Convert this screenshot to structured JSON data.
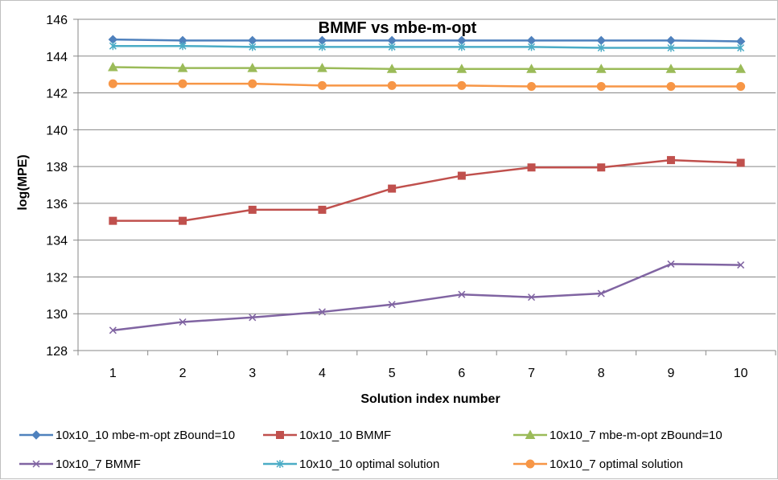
{
  "chart_data": {
    "type": "line",
    "title": "BMMF vs mbe-m-opt",
    "xlabel": "Solution index number",
    "ylabel": "log(MPE)",
    "categories": [
      "1",
      "2",
      "3",
      "4",
      "5",
      "6",
      "7",
      "8",
      "9",
      "10"
    ],
    "ylim": [
      128,
      146
    ],
    "yticks": [
      "128",
      "130",
      "132",
      "134",
      "136",
      "138",
      "140",
      "142",
      "144",
      "146"
    ],
    "grid": "horizontal",
    "legend_position": "bottom",
    "series": [
      {
        "name": "10x10_10 mbe-m-opt zBound=10",
        "color": "#4F81BD",
        "marker": "diamond",
        "values": [
          144.9,
          144.85,
          144.85,
          144.85,
          144.85,
          144.85,
          144.85,
          144.85,
          144.85,
          144.8
        ]
      },
      {
        "name": "10x10_10 BMMF",
        "color": "#C0504D",
        "marker": "square",
        "values": [
          135.05,
          135.05,
          135.65,
          135.65,
          136.8,
          137.5,
          137.95,
          137.95,
          138.35,
          138.2
        ]
      },
      {
        "name": "10x10_7 mbe-m-opt zBound=10",
        "color": "#9BBB59",
        "marker": "triangle",
        "values": [
          143.4,
          143.35,
          143.35,
          143.35,
          143.3,
          143.3,
          143.3,
          143.3,
          143.3,
          143.3
        ]
      },
      {
        "name": "10x10_7 BMMF",
        "color": "#8064A2",
        "marker": "x",
        "values": [
          129.1,
          129.55,
          129.8,
          130.1,
          130.5,
          131.05,
          130.9,
          131.1,
          132.7,
          132.65
        ]
      },
      {
        "name": "10x10_10 optimal solution",
        "color": "#4BACC6",
        "marker": "asterisk",
        "values": [
          144.55,
          144.55,
          144.5,
          144.5,
          144.5,
          144.5,
          144.5,
          144.45,
          144.45,
          144.45
        ]
      },
      {
        "name": "10x10_7 optimal solution",
        "color": "#F79646",
        "marker": "circle",
        "values": [
          142.5,
          142.5,
          142.5,
          142.4,
          142.4,
          142.4,
          142.35,
          142.35,
          142.35,
          142.35
        ]
      }
    ]
  }
}
